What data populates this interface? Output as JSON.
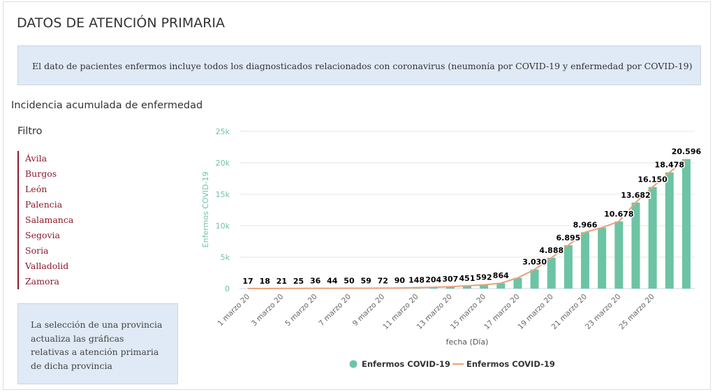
{
  "header": {
    "title": "DATOS DE ATENCIÓN PRIMARIA"
  },
  "notice": "El dato de pacientes enfermos incluye todos los diagnosticados relacionados con coronavirus (neumonía por COVID-19 y enfermedad por COVID-19)",
  "section_title": "Incidencia acumulada de enfermedad",
  "filter": {
    "title": "Filtro",
    "provinces": [
      "Ávila",
      "Burgos",
      "León",
      "Palencia",
      "Salamanca",
      "Segovia",
      "Soria",
      "Valladolid",
      "Zamora"
    ]
  },
  "info": "La selección de una provincia actualiza las gráficas relativas a atención primaria de dicha provincia",
  "chart_data": {
    "type": "bar",
    "x_label": "fecha (Día)",
    "y_label": "Enfermos COVID-19",
    "categories": [
      "1 marzo 20",
      null,
      "3 marzo 20",
      null,
      "5 marzo 20",
      null,
      "7 marzo 20",
      null,
      "9 marzo 20",
      null,
      "11 marzo 20",
      null,
      "13 marzo 20",
      null,
      "15 marzo 20",
      null,
      "17 marzo 20",
      null,
      "19 marzo 20",
      null,
      "21 marzo 20",
      null,
      "23 marzo 20",
      null,
      "25 marzo 20",
      null,
      null
    ],
    "series": [
      {
        "name": "Enfermos COVID-19",
        "type": "bar",
        "color": "#6cc4a4",
        "values": [
          17,
          18,
          21,
          25,
          36,
          44,
          50,
          59,
          72,
          90,
          148,
          204,
          307,
          451,
          592,
          864,
          1700,
          3030,
          4888,
          6895,
          8966,
          9700,
          10678,
          13682,
          16150,
          18478,
          20596
        ],
        "value_labels": [
          "17",
          "18",
          "21",
          "25",
          "36",
          "44",
          "50",
          "59",
          "72",
          "90",
          "148",
          "204",
          "307",
          "451",
          "592",
          "864",
          null,
          "3.030",
          "4.888",
          "6.895",
          "8.966",
          null,
          "10.678",
          "13.682",
          "16.150",
          "18.478",
          "20.596"
        ]
      },
      {
        "name": "Enfermos COVID-19",
        "type": "line",
        "color": "#e8a07a",
        "values": [
          17,
          18,
          21,
          25,
          36,
          44,
          50,
          59,
          72,
          90,
          148,
          204,
          307,
          451,
          592,
          864,
          1700,
          3030,
          4888,
          6895,
          8966,
          9700,
          10678,
          13682,
          16150,
          18478,
          20596
        ]
      }
    ],
    "ylim": [
      0,
      25000
    ],
    "yticks": [
      0,
      {
        "value": 5000,
        "label": "5k"
      },
      {
        "value": 10000,
        "label": "10k"
      },
      {
        "value": 15000,
        "label": "15k"
      },
      {
        "value": 20000,
        "label": "20k"
      },
      {
        "value": 25000,
        "label": "25k"
      }
    ],
    "grid": true,
    "legend": "bottom"
  }
}
